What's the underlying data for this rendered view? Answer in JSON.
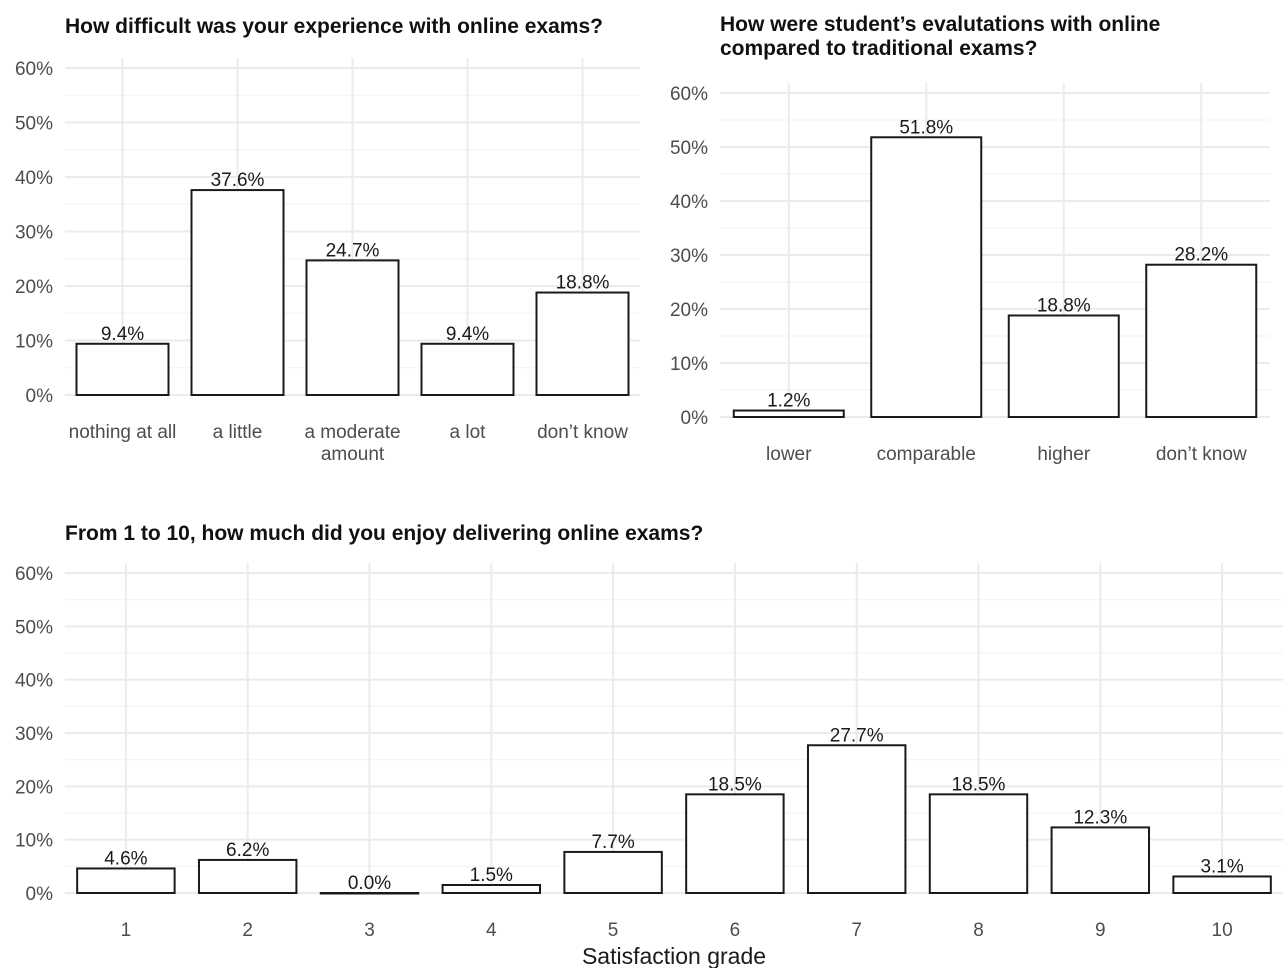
{
  "chart_data": [
    {
      "type": "bar",
      "title": "How difficult was your experience with online exams?",
      "categories": [
        [
          "nothing at all"
        ],
        [
          "a little"
        ],
        [
          "a moderate",
          "amount"
        ],
        [
          "a lot"
        ],
        [
          "don’t know"
        ]
      ],
      "values": [
        9.4,
        37.6,
        24.7,
        9.4,
        18.8
      ],
      "value_labels": [
        "9.4%",
        "37.6%",
        "24.7%",
        "9.4%",
        "18.8%"
      ],
      "xlabel": "",
      "ylabel": "",
      "ylim": [
        0,
        60
      ],
      "yticks": [
        "0%",
        "10%",
        "20%",
        "30%",
        "40%",
        "50%",
        "60%"
      ],
      "grid": true
    },
    {
      "type": "bar",
      "title": [
        "How were student’s evalutations with online",
        " compared to traditional exams?"
      ],
      "categories": [
        [
          "lower"
        ],
        [
          "comparable"
        ],
        [
          "higher"
        ],
        [
          "don’t know"
        ]
      ],
      "values": [
        1.2,
        51.8,
        18.8,
        28.2
      ],
      "value_labels": [
        "1.2%",
        "51.8%",
        "18.8%",
        "28.2%"
      ],
      "xlabel": "",
      "ylabel": "",
      "ylim": [
        0,
        60
      ],
      "yticks": [
        "0%",
        "10%",
        "20%",
        "30%",
        "40%",
        "50%",
        "60%"
      ],
      "grid": true
    },
    {
      "type": "bar",
      "title": "From 1 to 10, how much did you enjoy delivering online exams?",
      "categories": [
        [
          "1"
        ],
        [
          "2"
        ],
        [
          "3"
        ],
        [
          "4"
        ],
        [
          "5"
        ],
        [
          "6"
        ],
        [
          "7"
        ],
        [
          "8"
        ],
        [
          "9"
        ],
        [
          "10"
        ]
      ],
      "values": [
        4.6,
        6.2,
        0.0,
        1.5,
        7.7,
        18.5,
        27.7,
        18.5,
        12.3,
        3.1
      ],
      "value_labels": [
        "4.6%",
        "6.2%",
        "0.0%",
        "1.5%",
        "7.7%",
        "18.5%",
        "27.7%",
        "18.5%",
        "12.3%",
        "3.1%"
      ],
      "xlabel": "Satisfaction grade",
      "ylabel": "",
      "ylim": [
        0,
        60
      ],
      "yticks": [
        "0%",
        "10%",
        "20%",
        "30%",
        "40%",
        "50%",
        "60%"
      ],
      "grid": true
    }
  ]
}
